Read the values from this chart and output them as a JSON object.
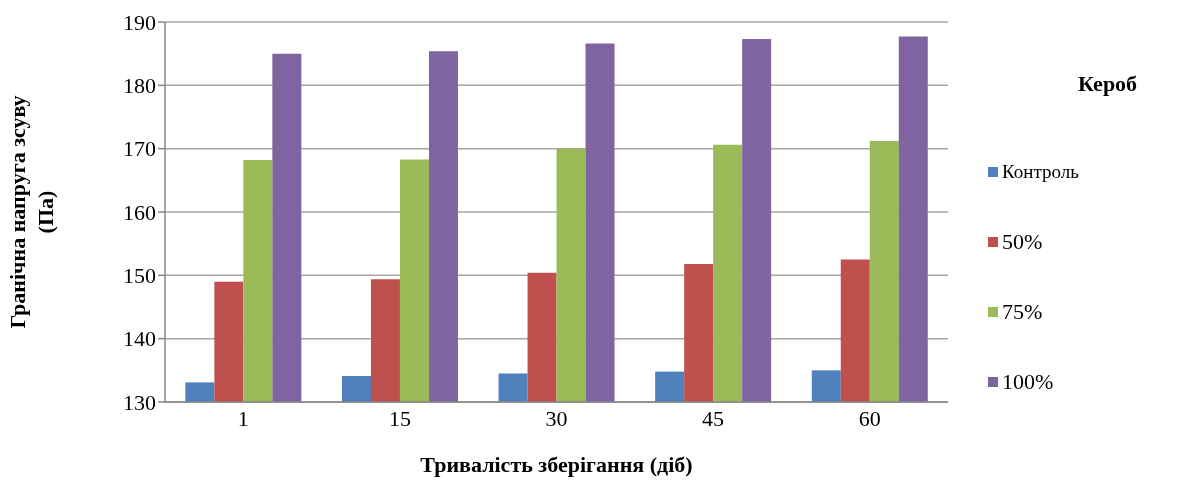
{
  "chart_data": {
    "type": "bar",
    "xlabel": "Тривалість зберігання (діб)",
    "ylabel": "Гранічна напруга зсуву\n(Па)",
    "legend_title": "Кероб",
    "categories": [
      "1",
      "15",
      "30",
      "45",
      "60"
    ],
    "series": [
      {
        "name": "Контроль",
        "color": "#4f81bd",
        "values": [
          133.1,
          134.1,
          134.5,
          134.8,
          135.0
        ]
      },
      {
        "name": "50%",
        "color": "#c0504d",
        "values": [
          149.0,
          149.4,
          150.4,
          151.8,
          152.5
        ]
      },
      {
        "name": "75%",
        "color": "#9bbb59",
        "values": [
          168.2,
          168.3,
          170.0,
          170.6,
          171.2
        ]
      },
      {
        "name": "100%",
        "color": "#8064a2",
        "values": [
          185.0,
          185.4,
          186.6,
          187.3,
          187.7
        ]
      }
    ],
    "ylim": [
      130,
      190
    ],
    "yticks": [
      130,
      140,
      150,
      160,
      170,
      180,
      190
    ],
    "grid": "y",
    "legend": "right"
  }
}
